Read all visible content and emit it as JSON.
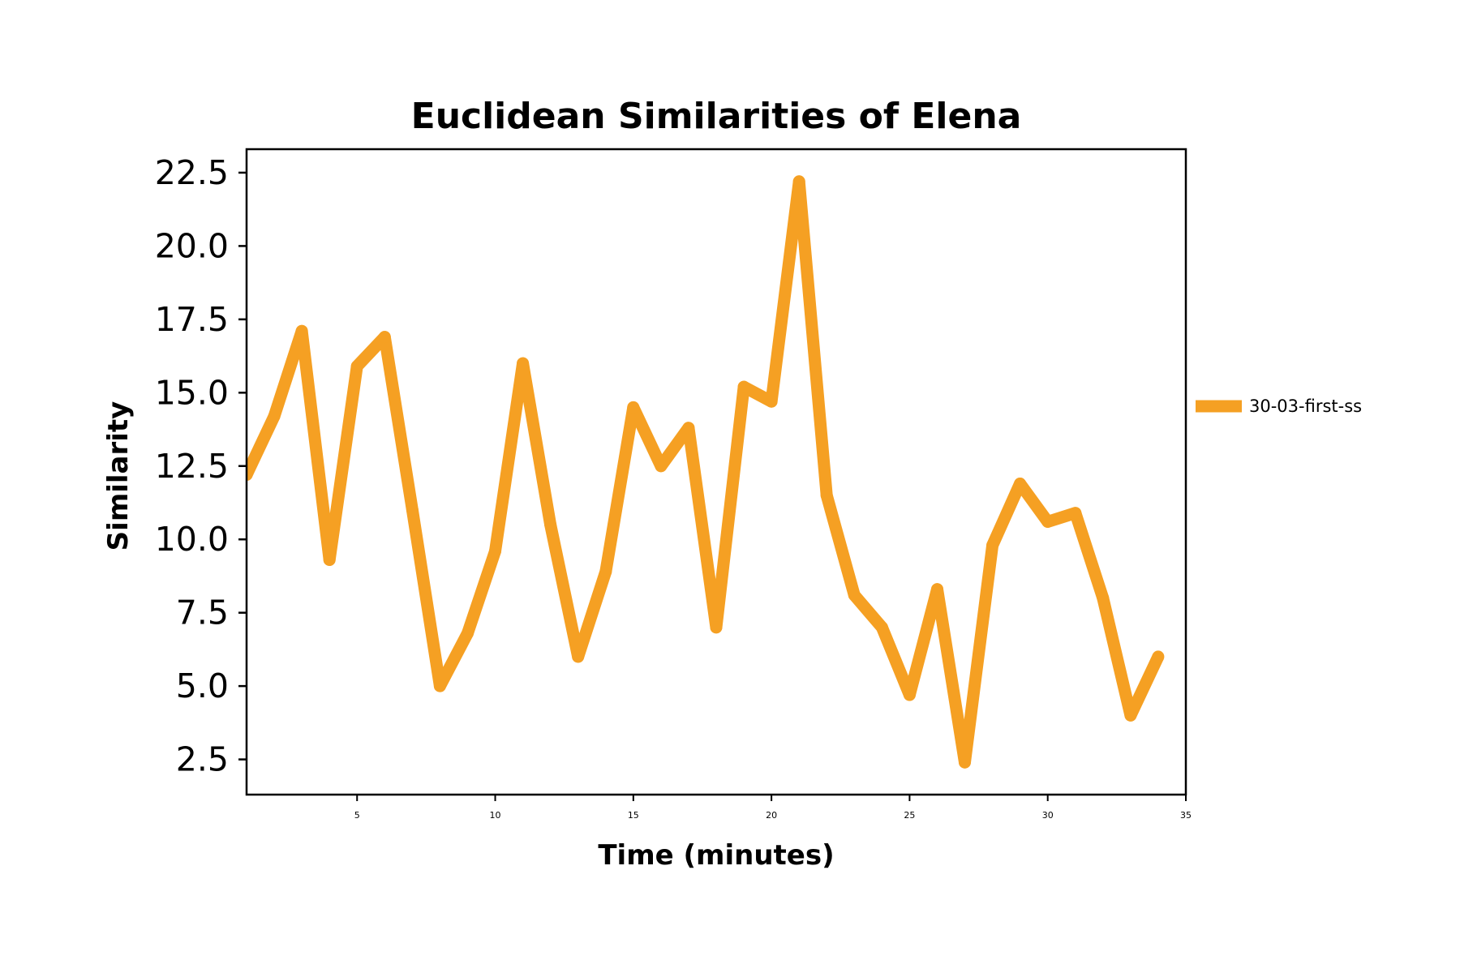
{
  "chart_data": {
    "type": "line",
    "title": "Euclidean Similarities of Elena",
    "xlabel": "Time (minutes)",
    "ylabel": "Similarity",
    "xlim": [
      1,
      35
    ],
    "ylim": [
      1.3,
      23.3
    ],
    "xticks": [
      5,
      10,
      15,
      20,
      25,
      30,
      35
    ],
    "yticks": [
      2.5,
      5.0,
      7.5,
      10.0,
      12.5,
      15.0,
      17.5,
      20.0,
      22.5
    ],
    "ytick_labels": [
      "2.5",
      "5.0",
      "7.5",
      "10.0",
      "12.5",
      "15.0",
      "17.5",
      "20.0",
      "22.5"
    ],
    "grid": false,
    "legend_position": "right",
    "series": [
      {
        "name": "30-03-first-ss",
        "color": "#f5a023",
        "x": [
          1,
          2,
          3,
          4,
          5,
          6,
          7,
          8,
          9,
          10,
          11,
          12,
          13,
          14,
          15,
          16,
          17,
          18,
          19,
          20,
          21,
          22,
          23,
          24,
          25,
          26,
          27,
          28,
          29,
          30,
          31,
          32,
          33,
          34
        ],
        "values": [
          12.2,
          14.2,
          17.1,
          9.3,
          15.9,
          16.9,
          11.0,
          5.0,
          6.8,
          9.6,
          16.0,
          10.5,
          6.0,
          8.9,
          14.5,
          12.5,
          13.8,
          7.0,
          15.2,
          14.7,
          22.2,
          11.5,
          8.1,
          7.0,
          4.7,
          8.3,
          2.4,
          9.8,
          11.9,
          10.6,
          10.9,
          8.0,
          4.0,
          6.0
        ]
      }
    ]
  }
}
